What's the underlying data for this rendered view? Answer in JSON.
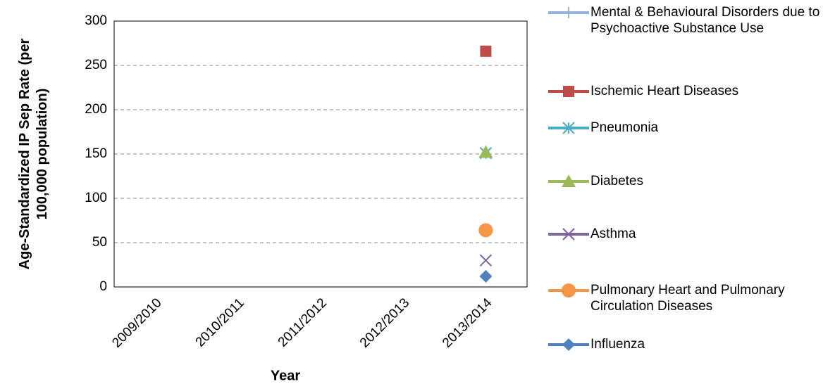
{
  "chart_data": {
    "type": "line",
    "x_label": "Year",
    "y_label": "Age-Standardized IP Sep Rate (per 100,000 population)",
    "categories": [
      "2009/2010",
      "2010/2011",
      "2011/2012",
      "2012/2013",
      "2013/2014"
    ],
    "series": [
      {
        "name": "Mental & Behavioural Disorders due to Psychoactive Substance Use",
        "color": "#95b3d7",
        "marker": "plus",
        "values": [
          null,
          null,
          null,
          null,
          null
        ]
      },
      {
        "name": "Ischemic Heart Diseases",
        "color": "#be4b48",
        "marker": "square",
        "values": [
          null,
          null,
          null,
          null,
          266
        ]
      },
      {
        "name": "Pneumonia",
        "color": "#4bacc6",
        "marker": "star",
        "values": [
          null,
          null,
          null,
          null,
          151
        ]
      },
      {
        "name": "Diabetes",
        "color": "#9bbb59",
        "marker": "triangle",
        "values": [
          null,
          null,
          null,
          null,
          152
        ]
      },
      {
        "name": "Asthma",
        "color": "#7f63a1",
        "marker": "x",
        "values": [
          null,
          null,
          null,
          null,
          30
        ]
      },
      {
        "name": "Pulmonary Heart and Pulmonary Circulation Diseases",
        "color": "#f79646",
        "marker": "circle",
        "values": [
          null,
          null,
          null,
          null,
          64
        ]
      },
      {
        "name": "Influenza",
        "color": "#4f81bd",
        "marker": "diamond",
        "values": [
          null,
          null,
          null,
          null,
          12
        ]
      }
    ],
    "ylim": [
      0,
      300
    ],
    "yticks": [
      0,
      50,
      100,
      150,
      200,
      250,
      300
    ],
    "grid": true,
    "legend": "right"
  }
}
